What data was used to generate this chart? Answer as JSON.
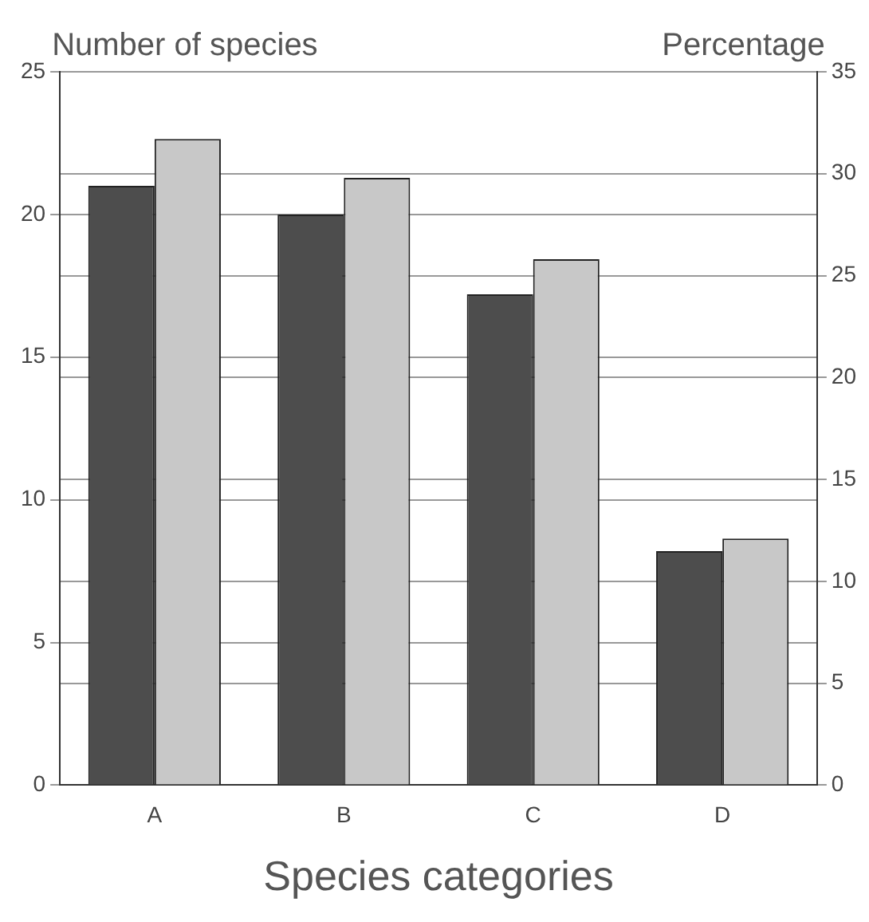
{
  "chart_data": {
    "type": "bar",
    "xlabel": "Species categories",
    "ylabel": "Number of species",
    "y2label": "Percentage",
    "categories": [
      "A",
      "B",
      "C",
      "D"
    ],
    "series": [
      {
        "color": "#4d4d4d",
        "values": [
          21,
          20,
          17.2,
          8.2
        ]
      },
      {
        "color": "#c8c8c8",
        "values": [
          31.7,
          29.8,
          25.8,
          12.1
        ],
        "axis": "y2"
      }
    ],
    "ylim": [
      0,
      25
    ],
    "yticks": [
      0,
      5,
      10,
      15,
      20,
      25
    ],
    "y2lim": [
      0,
      35
    ],
    "y2ticks": [
      0,
      5,
      10,
      15,
      20,
      25,
      30,
      35
    ],
    "grid": true,
    "legend": false
  }
}
